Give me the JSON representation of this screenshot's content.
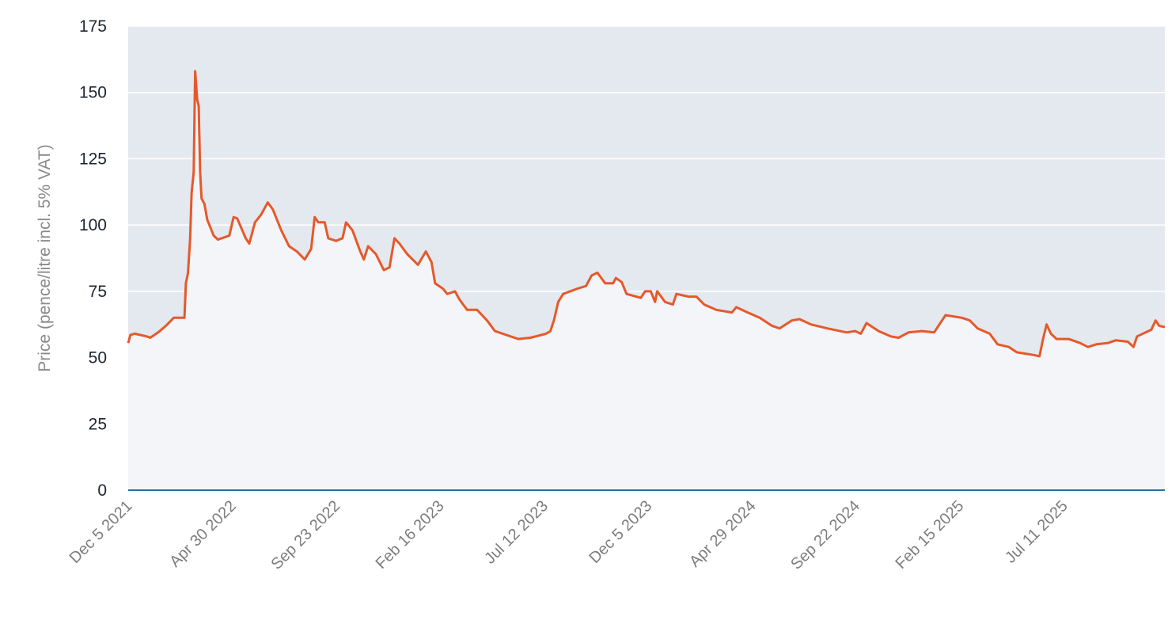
{
  "chart_data": {
    "type": "area",
    "title": "",
    "xlabel": "",
    "ylabel": "Price (pence/litre incl. 5% VAT)",
    "ylim": [
      0,
      175
    ],
    "xlim": [
      "2021-12-05",
      "2025-11-30"
    ],
    "yticks": [
      "0",
      "25",
      "50",
      "75",
      "100",
      "125",
      "150",
      "175"
    ],
    "xticks": [
      {
        "date": "2021-12-05",
        "label": "Dec 5 2021"
      },
      {
        "date": "2022-04-30",
        "label": "Apr 30 2022"
      },
      {
        "date": "2022-09-23",
        "label": "Sep 23 2022"
      },
      {
        "date": "2023-02-16",
        "label": "Feb 16 2023"
      },
      {
        "date": "2023-07-12",
        "label": "Jul 12 2023"
      },
      {
        "date": "2023-12-05",
        "label": "Dec 5 2023"
      },
      {
        "date": "2024-04-29",
        "label": "Apr 29 2024"
      },
      {
        "date": "2024-09-22",
        "label": "Sep 22 2024"
      },
      {
        "date": "2025-02-15",
        "label": "Feb 15 2025"
      },
      {
        "date": "2025-07-11",
        "label": "Jul 11 2025"
      }
    ],
    "grid": true,
    "colors": {
      "line": "#e5592b",
      "plot_bg": "#e4e8ef",
      "area_fill": "#f3f5f8",
      "baseline": "#2a6fa5",
      "grid": "#ffffff"
    },
    "series": [
      {
        "points": [
          [
            "2021-12-05",
            55.5
          ],
          [
            "2021-12-08",
            58.5
          ],
          [
            "2021-12-14",
            59
          ],
          [
            "2021-12-31",
            58
          ],
          [
            "2022-01-05",
            57.5
          ],
          [
            "2022-01-16",
            59.5
          ],
          [
            "2022-01-27",
            62
          ],
          [
            "2022-02-07",
            65
          ],
          [
            "2022-02-22",
            65
          ],
          [
            "2022-02-24",
            78
          ],
          [
            "2022-02-27",
            82
          ],
          [
            "2022-03-02",
            95
          ],
          [
            "2022-03-04",
            112
          ],
          [
            "2022-03-07",
            120
          ],
          [
            "2022-03-09",
            158
          ],
          [
            "2022-03-12",
            147
          ],
          [
            "2022-03-14",
            145
          ],
          [
            "2022-03-16",
            120
          ],
          [
            "2022-03-18",
            110
          ],
          [
            "2022-03-22",
            108
          ],
          [
            "2022-03-26",
            102
          ],
          [
            "2022-04-04",
            96
          ],
          [
            "2022-04-10",
            94.5
          ],
          [
            "2022-04-26",
            96
          ],
          [
            "2022-05-02",
            103
          ],
          [
            "2022-05-07",
            102.5
          ],
          [
            "2022-05-19",
            95
          ],
          [
            "2022-05-24",
            93
          ],
          [
            "2022-06-01",
            101
          ],
          [
            "2022-06-10",
            104
          ],
          [
            "2022-06-19",
            108.5
          ],
          [
            "2022-06-26",
            106
          ],
          [
            "2022-07-08",
            98
          ],
          [
            "2022-07-19",
            92
          ],
          [
            "2022-07-30",
            90
          ],
          [
            "2022-08-10",
            87
          ],
          [
            "2022-08-19",
            91
          ],
          [
            "2022-08-24",
            103
          ],
          [
            "2022-08-29",
            101
          ],
          [
            "2022-09-07",
            101
          ],
          [
            "2022-09-12",
            95
          ],
          [
            "2022-09-23",
            94
          ],
          [
            "2022-10-02",
            95
          ],
          [
            "2022-10-07",
            101
          ],
          [
            "2022-10-16",
            98
          ],
          [
            "2022-10-27",
            90
          ],
          [
            "2022-11-01",
            87
          ],
          [
            "2022-11-07",
            92
          ],
          [
            "2022-11-18",
            89
          ],
          [
            "2022-11-29",
            83
          ],
          [
            "2022-12-07",
            84
          ],
          [
            "2022-12-14",
            95
          ],
          [
            "2022-12-21",
            93
          ],
          [
            "2023-01-01",
            89
          ],
          [
            "2023-01-16",
            85
          ],
          [
            "2023-01-27",
            90
          ],
          [
            "2023-02-04",
            86
          ],
          [
            "2023-02-09",
            78
          ],
          [
            "2023-02-20",
            76
          ],
          [
            "2023-02-26",
            74
          ],
          [
            "2023-03-09",
            75
          ],
          [
            "2023-03-15",
            72
          ],
          [
            "2023-03-26",
            68
          ],
          [
            "2023-04-09",
            68
          ],
          [
            "2023-04-23",
            64
          ],
          [
            "2023-05-04",
            60
          ],
          [
            "2023-05-26",
            58
          ],
          [
            "2023-06-06",
            57
          ],
          [
            "2023-06-23",
            57.5
          ],
          [
            "2023-07-15",
            59
          ],
          [
            "2023-07-21",
            60
          ],
          [
            "2023-07-26",
            64
          ],
          [
            "2023-08-01",
            71
          ],
          [
            "2023-08-08",
            74
          ],
          [
            "2023-08-28",
            76
          ],
          [
            "2023-09-09",
            77
          ],
          [
            "2023-09-17",
            81
          ],
          [
            "2023-09-25",
            82
          ],
          [
            "2023-10-06",
            78
          ],
          [
            "2023-10-17",
            78
          ],
          [
            "2023-10-21",
            80
          ],
          [
            "2023-10-29",
            78.5
          ],
          [
            "2023-11-05",
            74
          ],
          [
            "2023-11-25",
            72.5
          ],
          [
            "2023-12-01",
            75
          ],
          [
            "2023-12-09",
            75
          ],
          [
            "2023-12-15",
            71
          ],
          [
            "2023-12-18",
            75
          ],
          [
            "2023-12-29",
            71
          ],
          [
            "2024-01-09",
            70
          ],
          [
            "2024-01-14",
            74
          ],
          [
            "2024-01-31",
            73
          ],
          [
            "2024-02-11",
            73
          ],
          [
            "2024-02-22",
            70
          ],
          [
            "2024-03-10",
            68
          ],
          [
            "2024-04-01",
            67
          ],
          [
            "2024-04-07",
            69
          ],
          [
            "2024-04-23",
            67
          ],
          [
            "2024-05-10",
            65
          ],
          [
            "2024-05-27",
            62
          ],
          [
            "2024-06-07",
            61
          ],
          [
            "2024-06-24",
            64
          ],
          [
            "2024-07-05",
            64.5
          ],
          [
            "2024-07-21",
            62.5
          ],
          [
            "2024-08-13",
            61
          ],
          [
            "2024-09-09",
            59.5
          ],
          [
            "2024-09-21",
            60
          ],
          [
            "2024-09-29",
            59
          ],
          [
            "2024-10-07",
            63
          ],
          [
            "2024-10-24",
            60
          ],
          [
            "2024-11-10",
            58
          ],
          [
            "2024-11-21",
            57.5
          ],
          [
            "2024-12-05",
            59.5
          ],
          [
            "2024-12-24",
            60
          ],
          [
            "2025-01-10",
            59.5
          ],
          [
            "2025-01-21",
            64
          ],
          [
            "2025-01-26",
            66
          ],
          [
            "2025-02-18",
            65
          ],
          [
            "2025-03-01",
            64
          ],
          [
            "2025-03-12",
            61
          ],
          [
            "2025-03-29",
            59
          ],
          [
            "2025-04-09",
            55
          ],
          [
            "2025-04-25",
            54
          ],
          [
            "2025-05-06",
            52
          ],
          [
            "2025-05-29",
            51
          ],
          [
            "2025-06-07",
            50.5
          ],
          [
            "2025-06-12",
            57
          ],
          [
            "2025-06-17",
            62.5
          ],
          [
            "2025-06-23",
            59
          ],
          [
            "2025-07-01",
            57
          ],
          [
            "2025-07-18",
            57
          ],
          [
            "2025-08-03",
            55.5
          ],
          [
            "2025-08-14",
            54
          ],
          [
            "2025-08-26",
            55
          ],
          [
            "2025-09-11",
            55.5
          ],
          [
            "2025-09-22",
            56.5
          ],
          [
            "2025-10-09",
            56
          ],
          [
            "2025-10-17",
            54
          ],
          [
            "2025-10-22",
            58
          ],
          [
            "2025-11-11",
            60.5
          ],
          [
            "2025-11-17",
            64
          ],
          [
            "2025-11-22",
            62
          ],
          [
            "2025-11-30",
            61.5
          ]
        ]
      }
    ]
  }
}
